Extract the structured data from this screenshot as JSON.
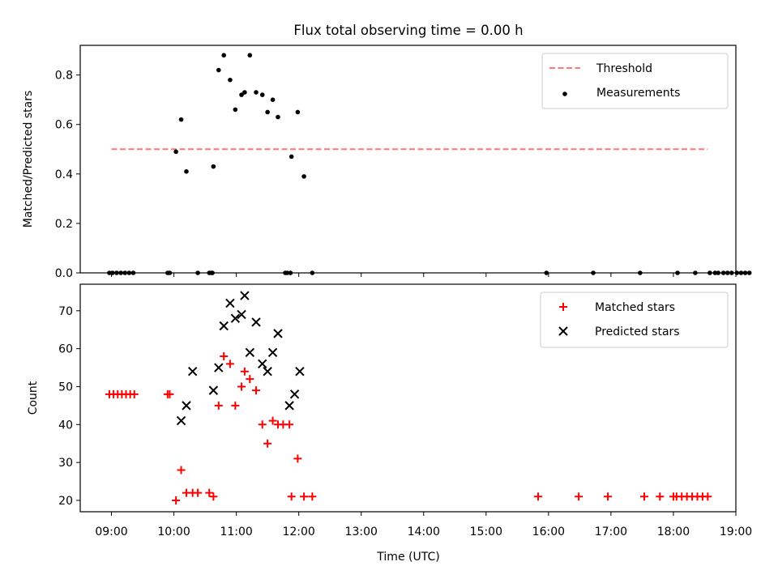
{
  "title": "Flux total observing time = 0.00 h",
  "xlabel": "Time (UTC)",
  "x_ticks": [
    "09:00",
    "10:00",
    "11:00",
    "12:00",
    "13:00",
    "14:00",
    "15:00",
    "16:00",
    "17:00",
    "18:00",
    "19:00"
  ],
  "colors": {
    "threshold": "#ff7777",
    "measurement": "#000000",
    "matched": "#ff0000",
    "predicted": "#000000"
  },
  "chart_data": [
    {
      "type": "scatter",
      "ylabel": "Matched/Predicted stars",
      "xlim": [
        "08:30",
        "19:00"
      ],
      "ylim": [
        0,
        0.92
      ],
      "y_ticks": [
        "0.0",
        "0.2",
        "0.4",
        "0.6",
        "0.8"
      ],
      "legend": "top-right",
      "threshold": {
        "name": "Threshold",
        "value": 0.5,
        "x_range": [
          "09:00",
          "18:33"
        ]
      },
      "series": [
        {
          "name": "Measurements",
          "marker": "dot",
          "points": [
            [
              "08:58",
              0
            ],
            [
              "09:01",
              0
            ],
            [
              "09:05",
              0
            ],
            [
              "09:09",
              0
            ],
            [
              "09:13",
              0
            ],
            [
              "09:17",
              0
            ],
            [
              "09:21",
              0
            ],
            [
              "09:54",
              0
            ],
            [
              "09:56",
              0
            ],
            [
              "10:02",
              0.49
            ],
            [
              "10:07",
              0.62
            ],
            [
              "10:12",
              0.41
            ],
            [
              "10:23",
              0
            ],
            [
              "10:34",
              0
            ],
            [
              "10:37",
              0
            ],
            [
              "10:36",
              0
            ],
            [
              "10:38",
              0.43
            ],
            [
              "10:43",
              0.82
            ],
            [
              "10:48",
              0.88
            ],
            [
              "10:54",
              0.78
            ],
            [
              "10:59",
              0.66
            ],
            [
              "11:05",
              0.72
            ],
            [
              "11:08",
              0.73
            ],
            [
              "11:13",
              0.88
            ],
            [
              "11:19",
              0.73
            ],
            [
              "11:25",
              0.72
            ],
            [
              "11:30",
              0.65
            ],
            [
              "11:35",
              0.7
            ],
            [
              "11:40",
              0.63
            ],
            [
              "11:47",
              0
            ],
            [
              "11:49",
              0
            ],
            [
              "11:52",
              0
            ],
            [
              "11:53",
              0.47
            ],
            [
              "11:59",
              0.65
            ],
            [
              "12:05",
              0.39
            ],
            [
              "12:13",
              0
            ],
            [
              "15:58",
              0
            ],
            [
              "16:43",
              0
            ],
            [
              "17:28",
              0
            ],
            [
              "18:04",
              0
            ],
            [
              "18:21",
              0
            ],
            [
              "18:35",
              0
            ],
            [
              "18:40",
              0
            ],
            [
              "18:43",
              0
            ],
            [
              "18:48",
              0
            ],
            [
              "18:52",
              0
            ],
            [
              "18:56",
              0
            ],
            [
              "19:01",
              0
            ],
            [
              "19:05",
              0
            ],
            [
              "19:09",
              0
            ],
            [
              "19:13",
              0
            ]
          ]
        }
      ]
    },
    {
      "type": "scatter",
      "ylabel": "Count",
      "xlim": [
        "08:30",
        "19:00"
      ],
      "ylim": [
        17,
        77
      ],
      "y_ticks": [
        "20",
        "30",
        "40",
        "50",
        "60",
        "70"
      ],
      "legend": "top-right",
      "series": [
        {
          "name": "Matched stars",
          "marker": "plus",
          "points": [
            [
              "08:58",
              48
            ],
            [
              "09:02",
              48
            ],
            [
              "09:06",
              48
            ],
            [
              "09:10",
              48
            ],
            [
              "09:14",
              48
            ],
            [
              "09:18",
              48
            ],
            [
              "09:22",
              48
            ],
            [
              "09:54",
              48
            ],
            [
              "09:56",
              48
            ],
            [
              "10:02",
              20
            ],
            [
              "10:07",
              28
            ],
            [
              "10:12",
              22
            ],
            [
              "10:18",
              22
            ],
            [
              "10:23",
              22
            ],
            [
              "10:34",
              22
            ],
            [
              "10:38",
              21
            ],
            [
              "10:43",
              45
            ],
            [
              "10:48",
              58
            ],
            [
              "10:54",
              56
            ],
            [
              "10:59",
              45
            ],
            [
              "11:05",
              50
            ],
            [
              "11:08",
              54
            ],
            [
              "11:13",
              52
            ],
            [
              "11:19",
              49
            ],
            [
              "11:25",
              40
            ],
            [
              "11:30",
              35
            ],
            [
              "11:35",
              41
            ],
            [
              "11:40",
              40
            ],
            [
              "11:45",
              40
            ],
            [
              "11:51",
              40
            ],
            [
              "11:53",
              21
            ],
            [
              "11:59",
              31
            ],
            [
              "12:05",
              21
            ],
            [
              "12:13",
              21
            ],
            [
              "15:50",
              21
            ],
            [
              "16:29",
              21
            ],
            [
              "16:57",
              21
            ],
            [
              "17:32",
              21
            ],
            [
              "17:47",
              21
            ],
            [
              "18:00",
              21
            ],
            [
              "18:03",
              21
            ],
            [
              "18:08",
              21
            ],
            [
              "18:13",
              21
            ],
            [
              "18:18",
              21
            ],
            [
              "18:23",
              21
            ],
            [
              "18:28",
              21
            ],
            [
              "18:33",
              21
            ]
          ]
        },
        {
          "name": "Predicted stars",
          "marker": "x",
          "points": [
            [
              "10:07",
              41
            ],
            [
              "10:12",
              45
            ],
            [
              "10:18",
              54
            ],
            [
              "10:38",
              49
            ],
            [
              "10:43",
              55
            ],
            [
              "10:48",
              66
            ],
            [
              "10:54",
              72
            ],
            [
              "10:59",
              68
            ],
            [
              "11:05",
              69
            ],
            [
              "11:08",
              74
            ],
            [
              "11:13",
              59
            ],
            [
              "11:19",
              67
            ],
            [
              "11:25",
              56
            ],
            [
              "11:30",
              54
            ],
            [
              "11:35",
              59
            ],
            [
              "11:40",
              64
            ],
            [
              "11:51",
              45
            ],
            [
              "11:56",
              48
            ],
            [
              "12:01",
              54
            ]
          ]
        }
      ]
    }
  ]
}
